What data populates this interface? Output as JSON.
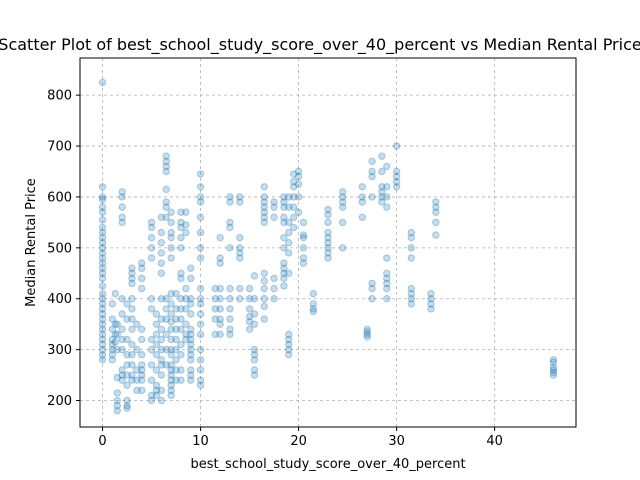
{
  "chart_data": {
    "type": "scatter",
    "title": "Scatter Plot of best_school_study_score_over_40_percent vs Median Rental Price",
    "xlabel": "best_school_study_score_over_40_percent",
    "ylabel": "Median Rental Price",
    "xlim": [
      -2.3,
      48.3
    ],
    "ylim": [
      148,
      873
    ],
    "xticks": [
      0,
      10,
      20,
      30,
      40
    ],
    "yticks": [
      200,
      300,
      400,
      500,
      600,
      700,
      800
    ],
    "grid": true,
    "marker_color": "#1f77b4",
    "marker_alpha": 0.25,
    "points": [
      [
        0,
        825
      ],
      [
        0,
        620
      ],
      [
        0,
        600
      ],
      [
        0,
        595
      ],
      [
        0,
        580
      ],
      [
        0,
        570
      ],
      [
        0,
        555
      ],
      [
        0,
        540
      ],
      [
        0,
        530
      ],
      [
        0,
        520
      ],
      [
        0,
        510
      ],
      [
        0,
        500
      ],
      [
        0,
        490
      ],
      [
        0,
        480
      ],
      [
        0,
        470
      ],
      [
        0,
        460
      ],
      [
        0,
        450
      ],
      [
        0,
        440
      ],
      [
        0,
        425
      ],
      [
        0,
        410
      ],
      [
        0,
        400
      ],
      [
        0,
        390
      ],
      [
        0,
        380
      ],
      [
        0,
        370
      ],
      [
        0,
        360
      ],
      [
        0,
        350
      ],
      [
        0,
        340
      ],
      [
        0,
        330
      ],
      [
        0,
        320
      ],
      [
        0,
        310
      ],
      [
        0,
        300
      ],
      [
        0,
        290
      ],
      [
        0,
        280
      ],
      [
        1,
        390
      ],
      [
        1,
        360
      ],
      [
        1,
        340
      ],
      [
        1,
        320
      ],
      [
        1,
        310
      ],
      [
        1,
        300
      ],
      [
        1,
        290
      ],
      [
        1,
        280
      ],
      [
        1.3,
        410
      ],
      [
        1.3,
        350
      ],
      [
        1.3,
        330
      ],
      [
        1.3,
        315
      ],
      [
        1.5,
        350
      ],
      [
        1.5,
        330
      ],
      [
        1.5,
        300
      ],
      [
        1.5,
        245
      ],
      [
        1.5,
        215
      ],
      [
        1.5,
        200
      ],
      [
        1.5,
        190
      ],
      [
        1.5,
        180
      ],
      [
        2,
        610
      ],
      [
        2,
        600
      ],
      [
        2,
        580
      ],
      [
        2,
        560
      ],
      [
        2,
        550
      ],
      [
        2,
        400
      ],
      [
        2,
        370
      ],
      [
        2,
        340
      ],
      [
        2,
        320
      ],
      [
        2,
        300
      ],
      [
        2,
        260
      ],
      [
        2,
        250
      ],
      [
        2,
        240
      ],
      [
        2.5,
        390
      ],
      [
        2.5,
        360
      ],
      [
        2.5,
        320
      ],
      [
        2.5,
        290
      ],
      [
        2.5,
        270
      ],
      [
        2.5,
        250
      ],
      [
        2.5,
        230
      ],
      [
        2.5,
        200
      ],
      [
        2.5,
        190
      ],
      [
        2.5,
        185
      ],
      [
        3,
        460
      ],
      [
        3,
        450
      ],
      [
        3,
        440
      ],
      [
        3,
        430
      ],
      [
        3,
        400
      ],
      [
        3,
        380
      ],
      [
        3,
        360
      ],
      [
        3,
        340
      ],
      [
        3,
        310
      ],
      [
        3,
        290
      ],
      [
        3,
        270
      ],
      [
        3,
        250
      ],
      [
        3,
        240
      ],
      [
        3.5,
        350
      ],
      [
        3.5,
        300
      ],
      [
        3.5,
        260
      ],
      [
        3.5,
        240
      ],
      [
        3.5,
        220
      ],
      [
        4,
        470
      ],
      [
        4,
        460
      ],
      [
        4,
        440
      ],
      [
        4,
        420
      ],
      [
        4,
        340
      ],
      [
        4,
        320
      ],
      [
        4,
        290
      ],
      [
        4,
        270
      ],
      [
        4,
        260
      ],
      [
        4,
        250
      ],
      [
        4,
        240
      ],
      [
        4,
        220
      ],
      [
        5,
        550
      ],
      [
        5,
        540
      ],
      [
        5,
        520
      ],
      [
        5,
        500
      ],
      [
        5,
        480
      ],
      [
        5,
        400
      ],
      [
        5,
        380
      ],
      [
        5,
        320
      ],
      [
        5,
        300
      ],
      [
        5,
        270
      ],
      [
        5,
        240
      ],
      [
        5,
        210
      ],
      [
        5,
        200
      ],
      [
        5.5,
        370
      ],
      [
        5.5,
        350
      ],
      [
        5.5,
        330
      ],
      [
        5.5,
        310
      ],
      [
        5.5,
        290
      ],
      [
        5.5,
        260
      ],
      [
        5.5,
        230
      ],
      [
        5.5,
        220
      ],
      [
        5.5,
        210
      ],
      [
        6,
        560
      ],
      [
        6,
        530
      ],
      [
        6,
        510
      ],
      [
        6,
        490
      ],
      [
        6,
        470
      ],
      [
        6,
        450
      ],
      [
        6,
        400
      ],
      [
        6,
        360
      ],
      [
        6,
        340
      ],
      [
        6,
        320
      ],
      [
        6,
        300
      ],
      [
        6,
        280
      ],
      [
        6,
        270
      ],
      [
        6,
        250
      ],
      [
        6,
        220
      ],
      [
        6,
        200
      ],
      [
        6.5,
        680
      ],
      [
        6.5,
        670
      ],
      [
        6.5,
        660
      ],
      [
        6.5,
        650
      ],
      [
        6.5,
        615
      ],
      [
        6.5,
        590
      ],
      [
        6.5,
        580
      ],
      [
        6.5,
        560
      ],
      [
        6.5,
        400
      ],
      [
        6.5,
        380
      ],
      [
        6.5,
        360
      ],
      [
        6.5,
        330
      ],
      [
        6.5,
        300
      ],
      [
        6.5,
        270
      ],
      [
        7,
        570
      ],
      [
        7,
        550
      ],
      [
        7,
        530
      ],
      [
        7,
        520
      ],
      [
        7,
        500
      ],
      [
        7,
        480
      ],
      [
        7,
        410
      ],
      [
        7,
        390
      ],
      [
        7,
        370
      ],
      [
        7,
        355
      ],
      [
        7,
        340
      ],
      [
        7,
        320
      ],
      [
        7,
        300
      ],
      [
        7,
        290
      ],
      [
        7,
        270
      ],
      [
        7,
        260
      ],
      [
        7,
        250
      ],
      [
        7,
        240
      ],
      [
        7,
        230
      ],
      [
        7,
        220
      ],
      [
        7,
        210
      ],
      [
        7.5,
        410
      ],
      [
        7.5,
        380
      ],
      [
        7.5,
        360
      ],
      [
        7.5,
        340
      ],
      [
        7.5,
        320
      ],
      [
        7.5,
        300
      ],
      [
        7.5,
        280
      ],
      [
        7.5,
        260
      ],
      [
        7.5,
        240
      ],
      [
        8,
        570
      ],
      [
        8,
        550
      ],
      [
        8,
        540
      ],
      [
        8,
        520
      ],
      [
        8,
        500
      ],
      [
        8,
        450
      ],
      [
        8,
        440
      ],
      [
        8,
        400
      ],
      [
        8,
        380
      ],
      [
        8,
        360
      ],
      [
        8,
        340
      ],
      [
        8,
        310
      ],
      [
        8,
        290
      ],
      [
        8,
        260
      ],
      [
        8,
        240
      ],
      [
        8.5,
        570
      ],
      [
        8.5,
        545
      ],
      [
        8.5,
        530
      ],
      [
        8.5,
        420
      ],
      [
        8.5,
        400
      ],
      [
        8.5,
        380
      ],
      [
        8.5,
        350
      ],
      [
        8.5,
        330
      ],
      [
        8.5,
        320
      ],
      [
        9,
        460
      ],
      [
        9,
        440
      ],
      [
        9,
        400
      ],
      [
        9,
        390
      ],
      [
        9,
        370
      ],
      [
        9,
        340
      ],
      [
        9,
        330
      ],
      [
        9,
        320
      ],
      [
        9,
        310
      ],
      [
        9,
        300
      ],
      [
        9,
        290
      ],
      [
        9,
        280
      ],
      [
        9,
        260
      ],
      [
        9,
        250
      ],
      [
        9,
        240
      ],
      [
        10,
        645
      ],
      [
        10,
        620
      ],
      [
        10,
        600
      ],
      [
        10,
        590
      ],
      [
        10,
        560
      ],
      [
        10,
        530
      ],
      [
        10,
        500
      ],
      [
        10,
        480
      ],
      [
        10,
        420
      ],
      [
        10,
        400
      ],
      [
        10,
        390
      ],
      [
        10,
        370
      ],
      [
        10,
        350
      ],
      [
        10,
        330
      ],
      [
        10,
        300
      ],
      [
        10,
        280
      ],
      [
        10,
        260
      ],
      [
        10,
        240
      ],
      [
        10,
        230
      ],
      [
        11.5,
        420
      ],
      [
        11.5,
        400
      ],
      [
        11.5,
        380
      ],
      [
        11.5,
        360
      ],
      [
        11.5,
        330
      ],
      [
        12,
        520
      ],
      [
        12,
        480
      ],
      [
        12,
        470
      ],
      [
        12,
        420
      ],
      [
        12,
        400
      ],
      [
        12,
        380
      ],
      [
        12,
        360
      ],
      [
        12,
        350
      ],
      [
        12,
        330
      ],
      [
        13,
        600
      ],
      [
        13,
        590
      ],
      [
        13,
        550
      ],
      [
        13,
        540
      ],
      [
        13,
        500
      ],
      [
        13,
        420
      ],
      [
        13,
        400
      ],
      [
        13,
        380
      ],
      [
        13,
        360
      ],
      [
        13,
        340
      ],
      [
        13,
        330
      ],
      [
        14,
        600
      ],
      [
        14,
        590
      ],
      [
        14,
        520
      ],
      [
        14,
        500
      ],
      [
        14,
        490
      ],
      [
        14,
        480
      ],
      [
        14,
        420
      ],
      [
        14,
        400
      ],
      [
        15,
        420
      ],
      [
        15,
        400
      ],
      [
        15,
        380
      ],
      [
        15,
        365
      ],
      [
        15,
        355
      ],
      [
        15,
        340
      ],
      [
        15.5,
        445
      ],
      [
        15.5,
        400
      ],
      [
        15.5,
        370
      ],
      [
        15.5,
        350
      ],
      [
        15.5,
        300
      ],
      [
        15.5,
        290
      ],
      [
        15.5,
        280
      ],
      [
        15.5,
        260
      ],
      [
        15.5,
        250
      ],
      [
        16.5,
        620
      ],
      [
        16.5,
        600
      ],
      [
        16.5,
        590
      ],
      [
        16.5,
        580
      ],
      [
        16.5,
        570
      ],
      [
        16.5,
        560
      ],
      [
        16.5,
        550
      ],
      [
        16.5,
        450
      ],
      [
        16.5,
        435
      ],
      [
        16.5,
        420
      ],
      [
        16.5,
        400
      ],
      [
        16.5,
        385
      ],
      [
        16.5,
        360
      ],
      [
        17.5,
        590
      ],
      [
        17.5,
        580
      ],
      [
        17.5,
        560
      ],
      [
        17.5,
        440
      ],
      [
        17.5,
        420
      ],
      [
        17.5,
        400
      ],
      [
        18.5,
        600
      ],
      [
        18.5,
        590
      ],
      [
        18.5,
        580
      ],
      [
        18.5,
        560
      ],
      [
        18.5,
        550
      ],
      [
        18.5,
        520
      ],
      [
        18.5,
        500
      ],
      [
        18.5,
        470
      ],
      [
        18.5,
        460
      ],
      [
        18.5,
        450
      ],
      [
        18.5,
        440
      ],
      [
        18.5,
        425
      ],
      [
        19,
        600
      ],
      [
        19,
        580
      ],
      [
        19,
        550
      ],
      [
        19,
        530
      ],
      [
        19,
        510
      ],
      [
        19,
        490
      ],
      [
        19,
        450
      ],
      [
        19,
        330
      ],
      [
        19,
        320
      ],
      [
        19,
        310
      ],
      [
        19,
        300
      ],
      [
        19,
        290
      ],
      [
        19.5,
        645
      ],
      [
        19.5,
        630
      ],
      [
        19.5,
        620
      ],
      [
        19.5,
        600
      ],
      [
        19.5,
        580
      ],
      [
        19.5,
        560
      ],
      [
        19.5,
        540
      ],
      [
        20,
        650
      ],
      [
        20,
        640
      ],
      [
        20,
        625
      ],
      [
        20,
        600
      ],
      [
        20,
        570
      ],
      [
        20.5,
        550
      ],
      [
        20.5,
        525
      ],
      [
        20.5,
        520
      ],
      [
        20.5,
        500
      ],
      [
        20.5,
        480
      ],
      [
        20.5,
        470
      ],
      [
        21.5,
        410
      ],
      [
        21.5,
        390
      ],
      [
        21.5,
        380
      ],
      [
        21.5,
        375
      ],
      [
        23,
        575
      ],
      [
        23,
        565
      ],
      [
        23,
        550
      ],
      [
        23,
        530
      ],
      [
        23,
        520
      ],
      [
        23,
        510
      ],
      [
        23,
        500
      ],
      [
        23,
        490
      ],
      [
        23,
        480
      ],
      [
        24.5,
        610
      ],
      [
        24.5,
        600
      ],
      [
        24.5,
        590
      ],
      [
        24.5,
        580
      ],
      [
        24.5,
        550
      ],
      [
        24.5,
        500
      ],
      [
        26.5,
        620
      ],
      [
        26.5,
        600
      ],
      [
        26.5,
        590
      ],
      [
        26.5,
        560
      ],
      [
        27,
        340
      ],
      [
        27,
        335
      ],
      [
        27,
        330
      ],
      [
        27,
        325
      ],
      [
        27.5,
        670
      ],
      [
        27.5,
        650
      ],
      [
        27.5,
        640
      ],
      [
        27.5,
        600
      ],
      [
        27.5,
        430
      ],
      [
        27.5,
        420
      ],
      [
        27.5,
        400
      ],
      [
        28.5,
        680
      ],
      [
        28.5,
        650
      ],
      [
        28.5,
        620
      ],
      [
        28.5,
        610
      ],
      [
        28.5,
        600
      ],
      [
        28.5,
        590
      ],
      [
        29,
        660
      ],
      [
        29,
        620
      ],
      [
        29,
        600
      ],
      [
        29,
        580
      ],
      [
        29,
        480
      ],
      [
        29,
        450
      ],
      [
        29,
        440
      ],
      [
        29,
        430
      ],
      [
        29,
        420
      ],
      [
        29,
        400
      ],
      [
        30,
        700
      ],
      [
        30,
        650
      ],
      [
        30,
        640
      ],
      [
        30,
        630
      ],
      [
        30,
        620
      ],
      [
        31.5,
        530
      ],
      [
        31.5,
        520
      ],
      [
        31.5,
        500
      ],
      [
        31.5,
        480
      ],
      [
        31.5,
        420
      ],
      [
        31.5,
        410
      ],
      [
        31.5,
        400
      ],
      [
        31.5,
        390
      ],
      [
        33.5,
        410
      ],
      [
        33.5,
        400
      ],
      [
        33.5,
        390
      ],
      [
        33.5,
        380
      ],
      [
        34,
        590
      ],
      [
        34,
        580
      ],
      [
        34,
        570
      ],
      [
        34,
        550
      ],
      [
        34,
        525
      ],
      [
        46,
        280
      ],
      [
        46,
        275
      ],
      [
        46,
        265
      ],
      [
        46,
        260
      ],
      [
        46,
        255
      ],
      [
        46,
        250
      ]
    ]
  }
}
